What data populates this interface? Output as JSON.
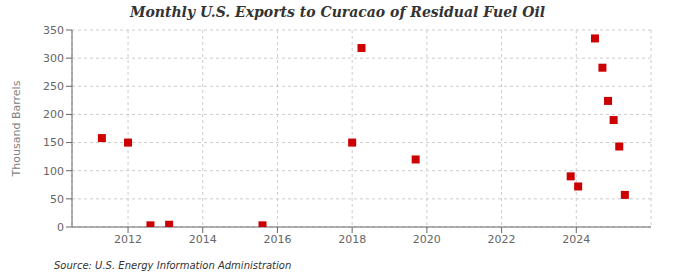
{
  "chart_data": {
    "type": "scatter",
    "title": "Monthly U.S. Exports to Curacao of Residual Fuel Oil",
    "ylabel": "Thousand Barrels",
    "annotations": [
      "Source: U.S. Energy Information Administration"
    ],
    "x": [
      2011.3,
      2012.0,
      2012.6,
      2013.1,
      2015.6,
      2018.0,
      2018.25,
      2019.7,
      2023.85,
      2024.05,
      2024.5,
      2024.7,
      2024.85,
      2025.0,
      2025.15,
      2025.3
    ],
    "values": [
      158,
      150,
      3,
      4,
      3,
      150,
      318,
      120,
      90,
      72,
      335,
      283,
      224,
      190,
      143,
      57
    ],
    "color": "#cc0000",
    "marker": "square",
    "xlim": [
      2010.5,
      2026.0
    ],
    "xticks": [
      2012,
      2014,
      2016,
      2018,
      2020,
      2022,
      2024
    ],
    "ylim": [
      0,
      350
    ],
    "yticks": [
      0,
      50,
      100,
      150,
      200,
      250,
      300,
      350
    ],
    "grid": true
  }
}
